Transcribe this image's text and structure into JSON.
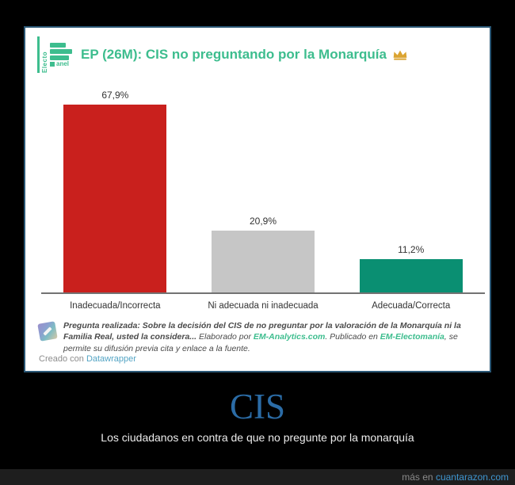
{
  "card": {
    "logo": {
      "vertical_text": "Electo",
      "suffix_text": "anel"
    },
    "title": "EP (26M): CIS no preguntando por la Monarquía",
    "crown_icon": "crown",
    "footnote": {
      "question_bold": "Pregunta realizada: Sobre la decisión del CIS de no preguntar por la valoración de la Monarquía ni la Familia Real, usted la considera...",
      "elaborado": " Elaborado por ",
      "link_analytics": "EM-Analytics.com",
      "publicado": ". Publicado en ",
      "link_electomania": "EM-Electomanía",
      "rest": ", se permite su difusión previa cita y enlace a la fuente."
    },
    "credit": {
      "prefix": "Creado con ",
      "link": "Datawrapper"
    }
  },
  "chart_data": {
    "type": "bar",
    "title": "EP (26M): CIS no preguntando por la Monarquía",
    "categories": [
      "Inadecuada/Incorrecta",
      "Ni adecuada ni inadecuada",
      "Adecuada/Correcta"
    ],
    "values": [
      67.9,
      20.9,
      11.2
    ],
    "value_labels": [
      "67,9%",
      "20,9%",
      "11,2%"
    ],
    "colors": [
      "#c9201d",
      "#c6c6c6",
      "#0a8f72"
    ],
    "xlabel": "",
    "ylabel": "",
    "ylim": [
      0,
      70
    ],
    "grid": false,
    "legend": false
  },
  "meme": {
    "title": "CIS",
    "caption": "Los ciudadanos en contra de que no pregunte por la monarquía"
  },
  "footer": {
    "prefix": "más en ",
    "site": "cuantarazon.com"
  },
  "colors": {
    "accent_teal": "#3dbd8e",
    "bar_red": "#c9201d",
    "bar_gray": "#c6c6c6",
    "bar_teal": "#0a8f72",
    "card_border": "#2b5876",
    "meme_title_blue": "#2b6ca6",
    "footer_link_blue": "#3f96d1",
    "crown_gold": "#dba431"
  }
}
